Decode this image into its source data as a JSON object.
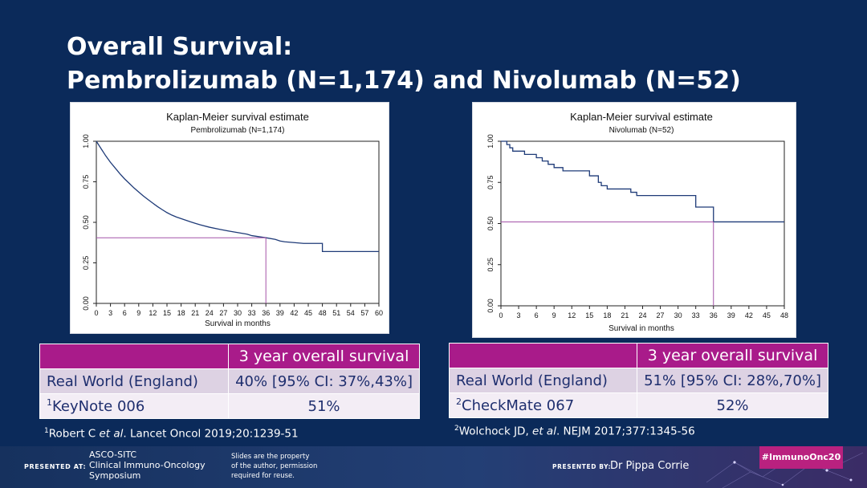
{
  "slide": {
    "title_line1": "Overall Survival:",
    "title_line2": "Pembrolizumab (N=1,174) and Nivolumab (N=52)"
  },
  "chart_data": [
    {
      "type": "line",
      "title": "Kaplan-Meier survival estimate",
      "subtitle": "Pembrolizumab (N=1,174)",
      "xlabel": "Survival in months",
      "ylabel": "",
      "xlim": [
        0,
        60
      ],
      "ylim": [
        0,
        1
      ],
      "x_ticks": [
        "0",
        "3",
        "6",
        "9",
        "12",
        "15",
        "18",
        "21",
        "24",
        "27",
        "30",
        "33",
        "36",
        "39",
        "42",
        "45",
        "48",
        "51",
        "54",
        "57",
        "60"
      ],
      "y_ticks": [
        "0.00",
        "0.25",
        "0.50",
        "0.75",
        "1.00"
      ],
      "grid": false,
      "line_color": "#1f3b78",
      "reference_color": "#a452a8",
      "series": [
        {
          "x": [
            0,
            1,
            2,
            3,
            4,
            5,
            6,
            7,
            8,
            9,
            10,
            11,
            12,
            13,
            14,
            15,
            16,
            17,
            18,
            19,
            20,
            21,
            22,
            24,
            26,
            28,
            30,
            32,
            33,
            36,
            38,
            39,
            40,
            42,
            44,
            45,
            48,
            48,
            50,
            52,
            54,
            56,
            57,
            60
          ],
          "y": [
            1.0,
            0.955,
            0.91,
            0.87,
            0.835,
            0.8,
            0.768,
            0.74,
            0.712,
            0.687,
            0.662,
            0.64,
            0.618,
            0.597,
            0.578,
            0.56,
            0.545,
            0.533,
            0.523,
            0.513,
            0.503,
            0.494,
            0.485,
            0.47,
            0.458,
            0.447,
            0.437,
            0.427,
            0.418,
            0.405,
            0.395,
            0.385,
            0.38,
            0.375,
            0.37,
            0.37,
            0.37,
            0.32,
            0.32,
            0.32,
            0.32,
            0.32,
            0.32,
            0.32
          ]
        }
      ],
      "reference": {
        "x": 36,
        "y": 0.405
      }
    },
    {
      "type": "line",
      "title": "Kaplan-Meier survival estimate",
      "subtitle": "Nivolumab (N=52)",
      "xlabel": "Survival in months",
      "ylabel": "",
      "xlim": [
        0,
        48
      ],
      "ylim": [
        0,
        1
      ],
      "x_ticks": [
        "0",
        "3",
        "6",
        "9",
        "12",
        "15",
        "18",
        "21",
        "24",
        "27",
        "30",
        "33",
        "36",
        "39",
        "42",
        "45",
        "48"
      ],
      "y_ticks": [
        "0.00",
        "0.25",
        "0.50",
        "0.75",
        "1.00"
      ],
      "grid": false,
      "line_color": "#1f3b78",
      "reference_color": "#a452a8",
      "series": [
        {
          "steps": [
            [
              0,
              1.0
            ],
            [
              1,
              0.98
            ],
            [
              1.5,
              0.96
            ],
            [
              2,
              0.94
            ],
            [
              4,
              0.92
            ],
            [
              6,
              0.9
            ],
            [
              7,
              0.88
            ],
            [
              8,
              0.86
            ],
            [
              9,
              0.84
            ],
            [
              10.5,
              0.82
            ],
            [
              15,
              0.79
            ],
            [
              16.5,
              0.75
            ],
            [
              17,
              0.73
            ],
            [
              18,
              0.71
            ],
            [
              22,
              0.69
            ],
            [
              23,
              0.67
            ],
            [
              33,
              0.6
            ],
            [
              36,
              0.51
            ],
            [
              48,
              0.51
            ]
          ]
        }
      ],
      "reference": {
        "x": 36,
        "y": 0.51
      }
    }
  ],
  "tables": [
    {
      "header": [
        "",
        "3 year overall survival"
      ],
      "rows": [
        {
          "label": "Real World (England)",
          "value": "40% [95% CI: 37%,43%]"
        },
        {
          "sup": "1",
          "label": "KeyNote 006",
          "value": "51%"
        }
      ],
      "footnote": {
        "sup": "1",
        "pre": "Robert C ",
        "em": "et al",
        "post": ". Lancet Oncol 2019;20:1239-51"
      }
    },
    {
      "header": [
        "",
        "3 year overall survival"
      ],
      "rows": [
        {
          "label": "Real World (England)",
          "value": "51% [95% CI: 28%,70%]"
        },
        {
          "sup": "2",
          "label": "CheckMate 067",
          "value": "52%"
        }
      ],
      "footnote": {
        "sup": "2",
        "pre": "Wolchock JD, ",
        "em": "et al",
        "post": ". NEJM 2017;377:1345-56"
      }
    }
  ],
  "footer": {
    "presented_at_label": "PRESENTED AT:",
    "conference_line1": "ASCO-SITC",
    "conference_line2": "Clinical Immuno-Oncology",
    "conference_line3": "Symposium",
    "rights_line1": "Slides are the property",
    "rights_line2": "of the author, permission",
    "rights_line3": "required for reuse.",
    "presented_by_label": "PRESENTED BY:",
    "presenter": "Dr Pippa Corrie",
    "hashtag": "#ImmunoOnc20"
  }
}
